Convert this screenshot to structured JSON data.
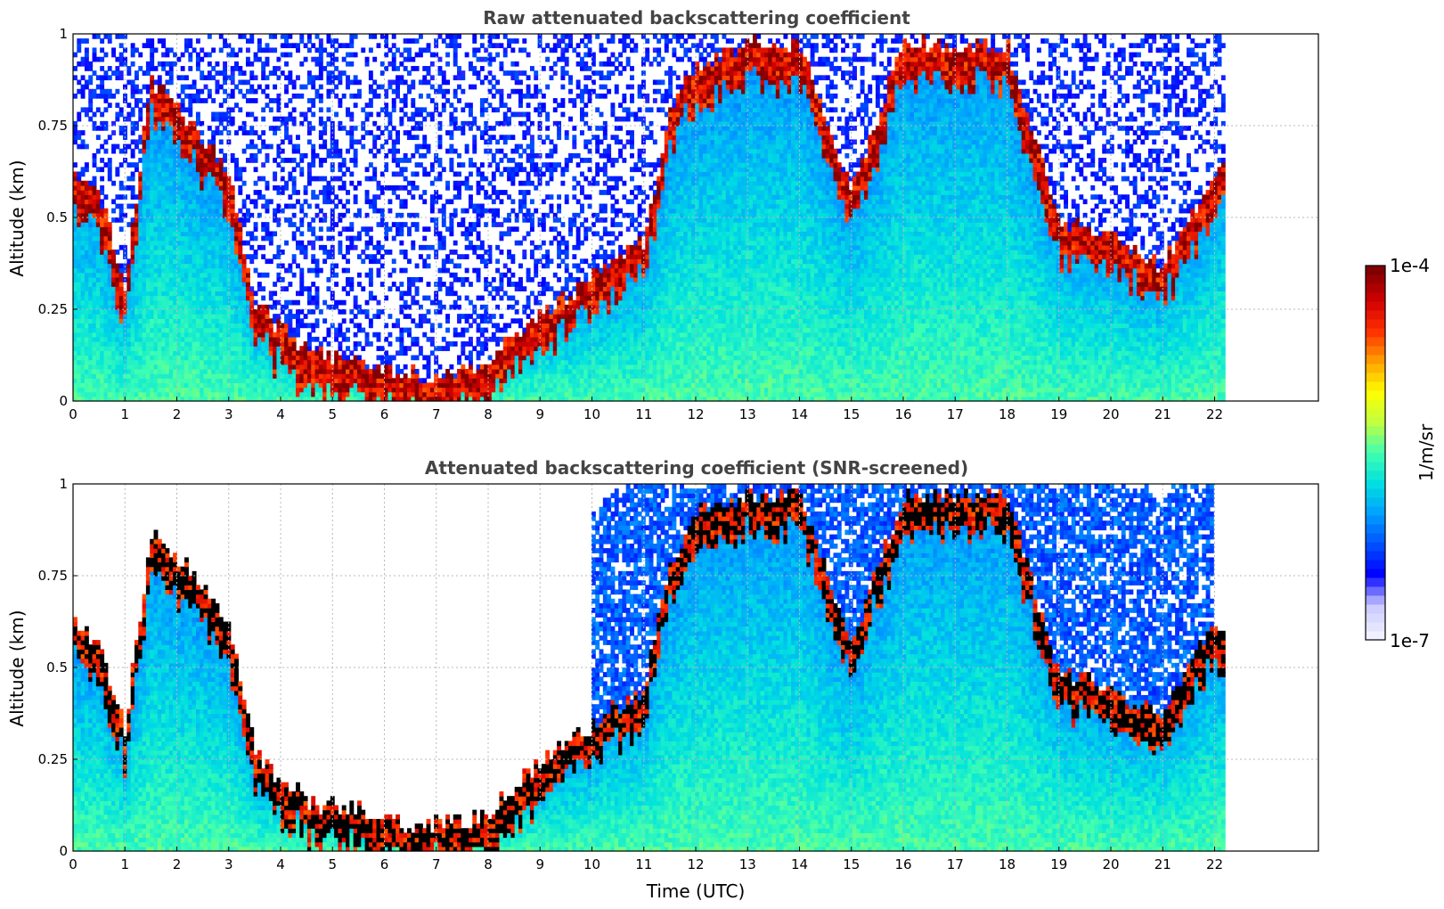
{
  "colors": {
    "colormap": [
      "#f0f0ff",
      "#c8c8ff",
      "#0000ff",
      "#0050ff",
      "#00a0ff",
      "#00e0e0",
      "#40ffb0",
      "#c0ff40",
      "#ffff00",
      "#ffa000",
      "#ff3000",
      "#d00000",
      "#800000"
    ],
    "screened_top": "#000000"
  },
  "chart_data": [
    {
      "type": "heatmap",
      "title": "Raw attenuated backscattering coefficient",
      "xlabel": "",
      "ylabel": "Altitude (km)",
      "xlim": [
        0,
        24
      ],
      "ylim": [
        0,
        1
      ],
      "xticks": [
        "0",
        "1",
        "2",
        "3",
        "4",
        "5",
        "6",
        "7",
        "8",
        "9",
        "10",
        "11",
        "12",
        "13",
        "14",
        "15",
        "16",
        "17",
        "18",
        "19",
        "20",
        "21",
        "22"
      ],
      "yticks": [
        "0",
        "0.25",
        "0.5",
        "0.75",
        "1"
      ],
      "data_end_time": 22.2,
      "layer_top": {
        "t": [
          0,
          0.5,
          1,
          1.5,
          2,
          2.5,
          3,
          3.5,
          4,
          4.5,
          5,
          5.5,
          6,
          6.5,
          7,
          7.5,
          8,
          8.5,
          9,
          9.5,
          10,
          10.5,
          11,
          11.5,
          12,
          13,
          14,
          15,
          16,
          17,
          18,
          19,
          20,
          21,
          22
        ],
        "altitude_km": [
          0.6,
          0.55,
          0.3,
          0.85,
          0.78,
          0.7,
          0.6,
          0.25,
          0.18,
          0.12,
          0.1,
          0.1,
          0.07,
          0.05,
          0.05,
          0.06,
          0.08,
          0.16,
          0.22,
          0.27,
          0.32,
          0.38,
          0.42,
          0.75,
          0.9,
          0.95,
          0.95,
          0.55,
          0.95,
          0.95,
          0.95,
          0.47,
          0.42,
          0.35,
          0.6
        ]
      },
      "grid": true,
      "grid_style": "dotted"
    },
    {
      "type": "heatmap",
      "title": "Attenuated backscattering coefficient (SNR-screened)",
      "xlabel": "Time (UTC)",
      "ylabel": "Altitude (km)",
      "xlim": [
        0,
        24
      ],
      "ylim": [
        0,
        1
      ],
      "xticks": [
        "0",
        "1",
        "2",
        "3",
        "4",
        "5",
        "6",
        "7",
        "8",
        "9",
        "10",
        "11",
        "12",
        "13",
        "14",
        "15",
        "16",
        "17",
        "18",
        "19",
        "20",
        "21",
        "22"
      ],
      "yticks": [
        "0",
        "0.25",
        "0.5",
        "0.75",
        "1"
      ],
      "data_end_time": 22.2,
      "grid": true,
      "grid_style": "dotted"
    }
  ],
  "colorbar": {
    "label": "1/m/sr",
    "max_label": "1e-4",
    "min_label": "1e-7",
    "scale": "log",
    "range": [
      1e-07,
      0.0001
    ]
  }
}
